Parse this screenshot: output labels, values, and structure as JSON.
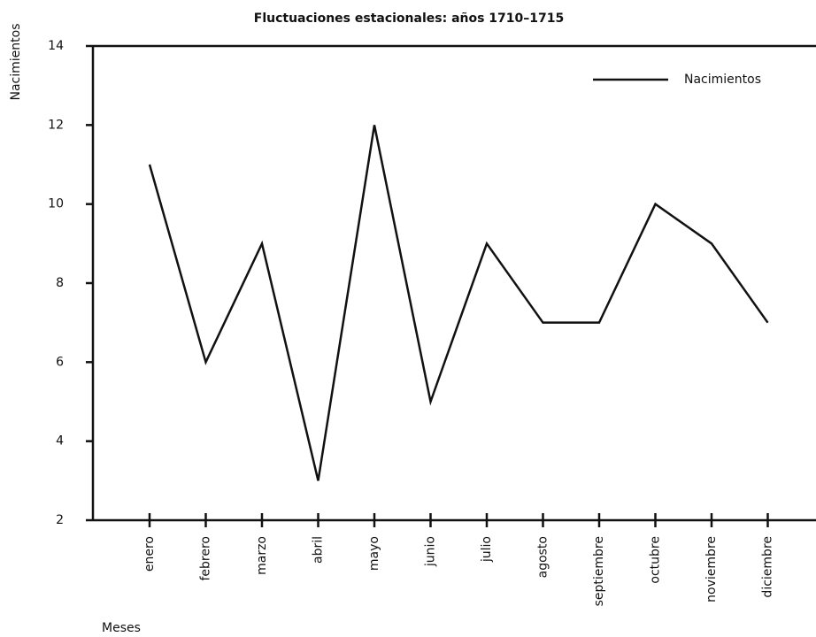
{
  "chart_data": {
    "type": "line",
    "title": "Fluctuaciones estacionales: años 1710–1715",
    "x_label": "Meses",
    "y_label": "Nacimientos",
    "categories": [
      "enero",
      "febrero",
      "marzo",
      "abril",
      "mayo",
      "junio",
      "julio",
      "agosto",
      "septiembre",
      "octubre",
      "noviembre",
      "diciembre"
    ],
    "series": [
      {
        "name": "Nacimientos",
        "color": "#111111",
        "values": [
          11,
          6,
          9,
          3,
          12,
          5,
          9,
          7,
          7,
          10,
          9,
          7
        ]
      }
    ],
    "ylim": [
      2,
      14
    ],
    "yticks": [
      2,
      4,
      6,
      8,
      10,
      12,
      14
    ],
    "grid": false,
    "legend": "upper right"
  }
}
